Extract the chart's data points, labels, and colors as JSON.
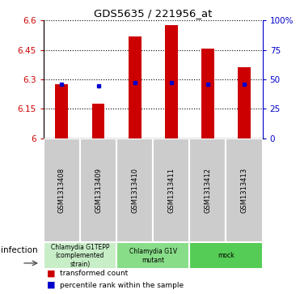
{
  "title": "GDS5635 / 221956_at",
  "samples": [
    "GSM1313408",
    "GSM1313409",
    "GSM1313410",
    "GSM1313411",
    "GSM1313412",
    "GSM1313413"
  ],
  "transformed_counts": [
    6.275,
    6.175,
    6.52,
    6.575,
    6.455,
    6.36
  ],
  "percentile_ranks": [
    6.275,
    6.265,
    6.285,
    6.285,
    6.275,
    6.275
  ],
  "ymin": 6.0,
  "ymax": 6.6,
  "yticks_left": [
    6.0,
    6.15,
    6.3,
    6.45,
    6.6
  ],
  "ytick_labels_left": [
    "6",
    "6.15",
    "6.3",
    "6.45",
    "6.6"
  ],
  "yticks_right_pct": [
    0,
    25,
    50,
    75,
    100
  ],
  "ytick_labels_right": [
    "0",
    "25",
    "50",
    "75",
    "100%"
  ],
  "bar_color": "#cc0000",
  "blue_color": "#0000cc",
  "groups": [
    {
      "label": "Chlamydia G1TEPP\n(complemented\nstrain)",
      "start": 0,
      "end": 2,
      "color": "#c8eec8"
    },
    {
      "label": "Chlamydia G1V\nmutant",
      "start": 2,
      "end": 4,
      "color": "#88dd88"
    },
    {
      "label": "mock",
      "start": 4,
      "end": 6,
      "color": "#55cc55"
    }
  ],
  "infection_label": "infection",
  "legend_red": "transformed count",
  "legend_blue": "percentile rank within the sample",
  "bar_width": 0.35
}
